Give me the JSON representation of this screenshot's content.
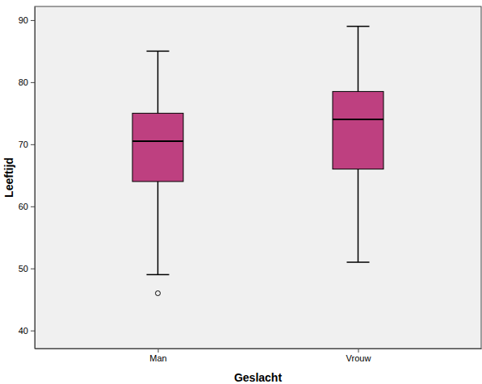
{
  "chart_data": {
    "type": "box",
    "x_label": "Geslacht",
    "y_label": "Leeftijd",
    "categories": [
      "Man",
      "Vrouw"
    ],
    "values": [
      {
        "whisker_low": 49,
        "q1": 64,
        "median": 70.5,
        "q3": 75,
        "whisker_high": 85,
        "outliers": [
          46
        ]
      },
      {
        "whisker_low": 51,
        "q1": 66,
        "median": 74,
        "q3": 78.5,
        "whisker_high": 89,
        "outliers": []
      }
    ],
    "color": "#be4080",
    "ylim": [
      37.1,
      92.2
    ],
    "yticks": [
      40,
      50,
      60,
      70,
      80,
      90
    ],
    "grid": false
  }
}
